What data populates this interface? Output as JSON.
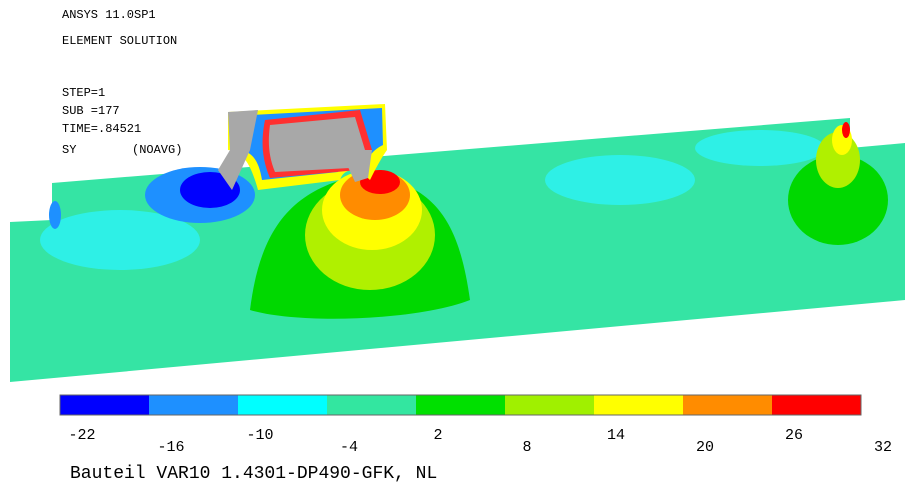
{
  "header": [
    "ANSYS 11.0SP1",
    "ELEMENT SOLUTION"
  ],
  "info": [
    "STEP=1",
    "SUB =177",
    "TIME=.84521"
  ],
  "result": {
    "label": "SY",
    "option": "(NOAVG)"
  },
  "legend": {
    "colors": [
      "#0000ff",
      "#1e90ff",
      "#00ffff",
      "#33e6a0",
      "#00e000",
      "#a0f000",
      "#ffff00",
      "#ff8c00",
      "#ff0000"
    ],
    "ticks": [
      -22,
      -16,
      -10,
      -4,
      2,
      8,
      14,
      20,
      26,
      32
    ]
  },
  "caption": "Bauteil VAR10 1.4301-DP490-GFK, NL"
}
